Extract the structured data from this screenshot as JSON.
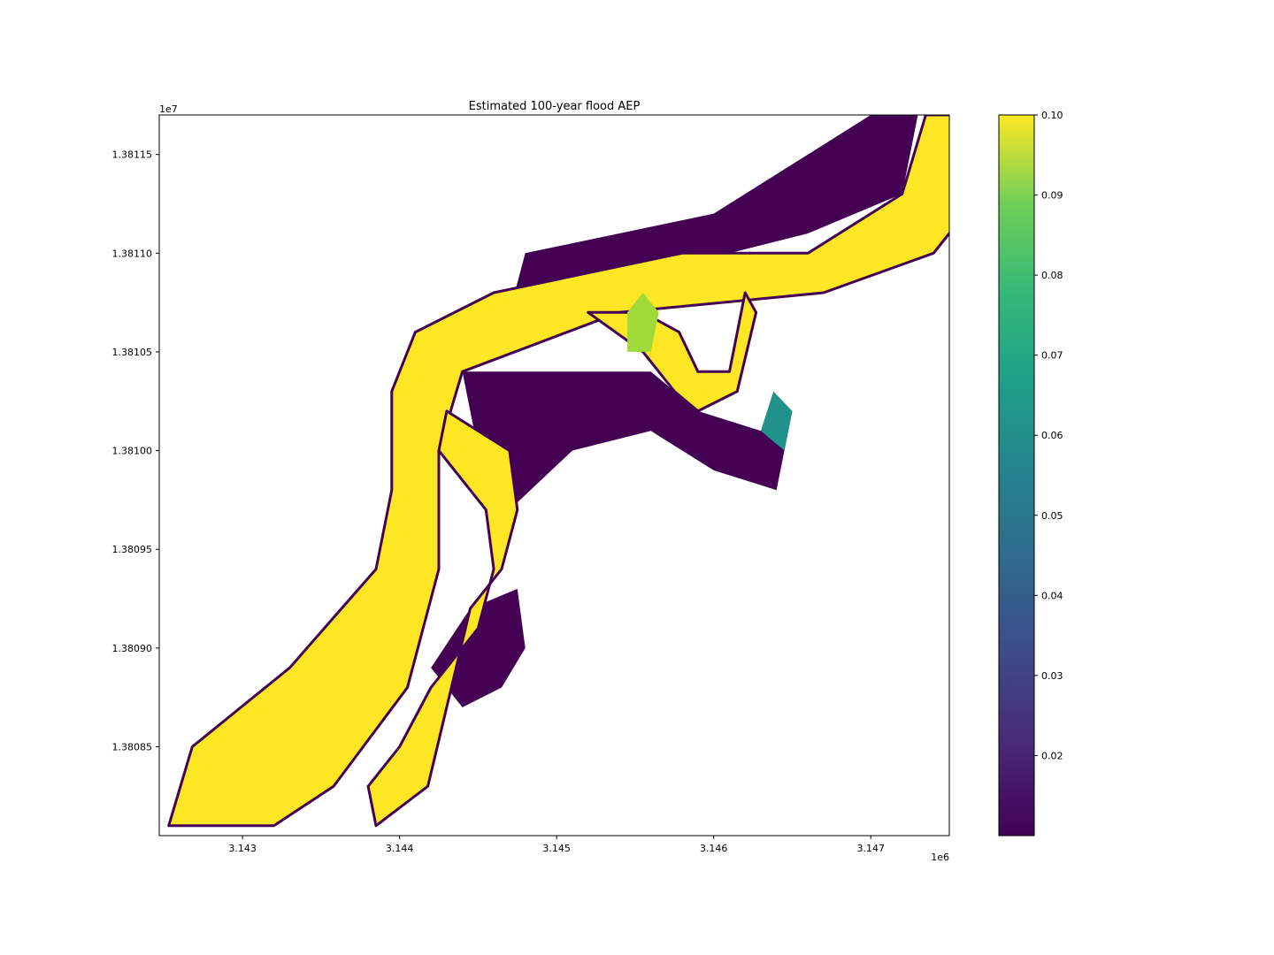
{
  "chart_data": {
    "type": "heatmap",
    "title": "Estimated 100-year flood AEP",
    "xlabel": "",
    "ylabel": "",
    "x_offset_label": "1e6",
    "y_offset_label": "1e7",
    "xlim": [
      3.14247,
      3.1475
    ],
    "ylim": [
      1.380805,
      1.38117
    ],
    "x_ticks": [
      {
        "value": 3.143,
        "label": "3.143"
      },
      {
        "value": 3.144,
        "label": "3.144"
      },
      {
        "value": 3.145,
        "label": "3.145"
      },
      {
        "value": 3.146,
        "label": "3.146"
      },
      {
        "value": 3.147,
        "label": "3.147"
      }
    ],
    "y_ticks": [
      {
        "value": 1.38085,
        "label": "1.38085"
      },
      {
        "value": 1.3809,
        "label": "1.38090"
      },
      {
        "value": 1.38095,
        "label": "1.38095"
      },
      {
        "value": 1.381,
        "label": "1.38100"
      },
      {
        "value": 1.38105,
        "label": "1.38105"
      },
      {
        "value": 1.3811,
        "label": "1.38110"
      },
      {
        "value": 1.38115,
        "label": "1.38115"
      }
    ],
    "colormap": "viridis",
    "colorbar": {
      "vmin": 0.01,
      "vmax": 0.1,
      "ticks": [
        {
          "value": 0.02,
          "label": "0.02"
        },
        {
          "value": 0.03,
          "label": "0.03"
        },
        {
          "value": 0.04,
          "label": "0.04"
        },
        {
          "value": 0.05,
          "label": "0.05"
        },
        {
          "value": 0.06,
          "label": "0.06"
        },
        {
          "value": 0.07,
          "label": "0.07"
        },
        {
          "value": 0.08,
          "label": "0.08"
        },
        {
          "value": 0.09,
          "label": "0.09"
        },
        {
          "value": 0.1,
          "label": "0.10"
        }
      ]
    },
    "colors": {
      "high": "#fde725",
      "mid_high": "#a0da39",
      "mid": "#21918c",
      "low": "#440154",
      "low_mid": "#3b528b"
    },
    "regions": {
      "main_channel": {
        "value": 0.1,
        "points": [
          [
            3.14253,
            1.38081
          ],
          [
            3.14268,
            1.38085
          ],
          [
            3.1433,
            1.38089
          ],
          [
            3.14385,
            1.38094
          ],
          [
            3.14395,
            1.38098
          ],
          [
            3.14395,
            1.38103
          ],
          [
            3.1441,
            1.38106
          ],
          [
            3.1446,
            1.38108
          ],
          [
            3.1458,
            1.3811
          ],
          [
            3.1466,
            1.3811
          ],
          [
            3.1472,
            1.38113
          ],
          [
            3.14735,
            1.38117
          ],
          [
            3.14785,
            1.38117
          ],
          [
            3.1477,
            1.38113
          ],
          [
            3.1474,
            1.3811
          ],
          [
            3.1467,
            1.38108
          ],
          [
            3.1454,
            1.38107
          ],
          [
            3.1444,
            1.38104
          ],
          [
            3.14425,
            1.381
          ],
          [
            3.14425,
            1.38094
          ],
          [
            3.14405,
            1.38088
          ],
          [
            3.14358,
            1.38083
          ],
          [
            3.1432,
            1.38081
          ]
        ]
      },
      "side_channel": {
        "value": 0.1,
        "points": [
          [
            3.1443,
            1.38102
          ],
          [
            3.1447,
            1.381
          ],
          [
            3.14475,
            1.38097
          ],
          [
            3.14465,
            1.38094
          ],
          [
            3.14445,
            1.38092
          ],
          [
            3.1443,
            1.38087
          ],
          [
            3.14418,
            1.38083
          ],
          [
            3.14385,
            1.38081
          ],
          [
            3.1438,
            1.38083
          ],
          [
            3.144,
            1.38085
          ],
          [
            3.1442,
            1.38088
          ],
          [
            3.1445,
            1.38091
          ],
          [
            3.1446,
            1.38094
          ],
          [
            3.14455,
            1.38097
          ],
          [
            3.14425,
            1.381
          ]
        ]
      },
      "east_loop": {
        "value": 0.1,
        "points": [
          [
            3.1452,
            1.38107
          ],
          [
            3.14555,
            1.38105
          ],
          [
            3.14575,
            1.38103
          ],
          [
            3.1459,
            1.38102
          ],
          [
            3.14615,
            1.38103
          ],
          [
            3.14627,
            1.38107
          ],
          [
            3.1462,
            1.38108
          ],
          [
            3.1461,
            1.38104
          ],
          [
            3.1459,
            1.38104
          ],
          [
            3.14578,
            1.38106
          ],
          [
            3.14555,
            1.38107
          ]
        ]
      },
      "floodplain_nw": {
        "value": 0.02,
        "points": [
          [
            3.1447,
            1.38107
          ],
          [
            3.1448,
            1.3811
          ],
          [
            3.146,
            1.38112
          ],
          [
            3.1466,
            1.38115
          ],
          [
            3.147,
            1.38117
          ],
          [
            3.1473,
            1.38117
          ],
          [
            3.1472,
            1.38113
          ],
          [
            3.1466,
            1.38111
          ],
          [
            3.1456,
            1.38109
          ]
        ]
      },
      "floodplain_center": {
        "value": 0.02,
        "points": [
          [
            3.1444,
            1.38104
          ],
          [
            3.1456,
            1.38104
          ],
          [
            3.1459,
            1.38102
          ],
          [
            3.1463,
            1.38101
          ],
          [
            3.1465,
            1.38102
          ],
          [
            3.1464,
            1.38098
          ],
          [
            3.146,
            1.38099
          ],
          [
            3.1456,
            1.38101
          ],
          [
            3.1451,
            1.381
          ],
          [
            3.1447,
            1.38097
          ],
          [
            3.1445,
            1.381
          ]
        ]
      },
      "floodplain_south": {
        "value": 0.02,
        "points": [
          [
            3.14445,
            1.38092
          ],
          [
            3.14475,
            1.38093
          ],
          [
            3.1448,
            1.3809
          ],
          [
            3.14465,
            1.38088
          ],
          [
            3.1444,
            1.38087
          ],
          [
            3.1442,
            1.38089
          ]
        ]
      },
      "pond_green": {
        "value": 0.085,
        "points": [
          [
            3.14545,
            1.38105
          ],
          [
            3.1456,
            1.38105
          ],
          [
            3.14565,
            1.38107
          ],
          [
            3.14555,
            1.38108
          ],
          [
            3.14545,
            1.38107
          ]
        ]
      },
      "pond_teal": {
        "value": 0.05,
        "points": [
          [
            3.1463,
            1.38101
          ],
          [
            3.14645,
            1.381
          ],
          [
            3.1465,
            1.38102
          ],
          [
            3.14638,
            1.38103
          ]
        ]
      }
    }
  }
}
